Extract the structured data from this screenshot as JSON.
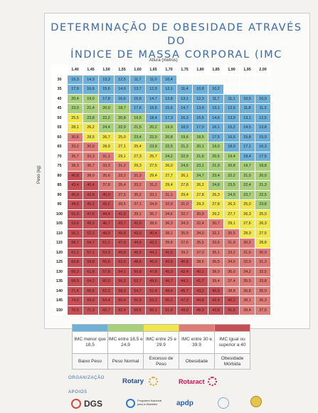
{
  "title": {
    "line1": "DETERMINAÇÃO DE OBESIDADE ATRAVÉS DO",
    "line2": "ÍNDICE DE MASSA CORPORAL (IMC"
  },
  "table": {
    "x_axis_label": "Altura (metros)",
    "y_axis_label": "Peso (kg)",
    "heights": [
      "1,40",
      "1,45",
      "1,50",
      "1,55",
      "1,60",
      "1,65",
      "1,70",
      "1,75",
      "1,80",
      "1,85",
      "1,90",
      "1,95",
      "2,00"
    ],
    "rows": [
      {
        "w": "30",
        "v": [
          "15,3",
          "14,3",
          "13,3",
          "12,5",
          "11,7",
          "11,0",
          "10,4",
          "",
          "",
          "",
          "",
          "",
          ""
        ]
      },
      {
        "w": "35",
        "v": [
          "17,9",
          "16,6",
          "15,6",
          "14,6",
          "13,7",
          "12,9",
          "12,1",
          "11,4",
          "10,8",
          "10,2",
          "",
          "",
          ""
        ]
      },
      {
        "w": "40",
        "v": [
          "20,4",
          "19,0",
          "17,8",
          "16,6",
          "15,6",
          "14,7",
          "13,8",
          "13,1",
          "12,3",
          "11,7",
          "11,1",
          "10,5",
          "10,0"
        ]
      },
      {
        "w": "45",
        "v": [
          "23,0",
          "21,4",
          "20,0",
          "18,7",
          "17,6",
          "16,5",
          "15,6",
          "14,7",
          "13,9",
          "13,1",
          "12,5",
          "11,8",
          "11,3"
        ]
      },
      {
        "w": "50",
        "v": [
          "25,5",
          "23,8",
          "22,2",
          "20,8",
          "19,5",
          "18,4",
          "17,3",
          "16,3",
          "15,5",
          "14,6",
          "13,9",
          "13,1",
          "12,5"
        ]
      },
      {
        "w": "55",
        "v": [
          "28,1",
          "26,2",
          "24,4",
          "22,9",
          "21,5",
          "20,2",
          "19,0",
          "18,0",
          "17,0",
          "16,1",
          "15,2",
          "14,5",
          "13,8"
        ]
      },
      {
        "w": "60",
        "v": [
          "30,6",
          "28,5",
          "26,7",
          "25,0",
          "23,4",
          "22,0",
          "20,8",
          "19,6",
          "18,5",
          "17,5",
          "16,6",
          "15,8",
          "15,0"
        ]
      },
      {
        "w": "65",
        "v": [
          "33,2",
          "30,9",
          "28,9",
          "27,1",
          "25,4",
          "23,9",
          "22,5",
          "21,2",
          "20,1",
          "19,0",
          "18,0",
          "17,1",
          "16,3"
        ]
      },
      {
        "w": "70",
        "v": [
          "35,7",
          "33,3",
          "31,1",
          "29,1",
          "27,3",
          "25,7",
          "24,2",
          "22,9",
          "21,6",
          "20,5",
          "19,4",
          "18,4",
          "17,5"
        ]
      },
      {
        "w": "75",
        "v": [
          "38,3",
          "35,7",
          "33,3",
          "31,2",
          "29,3",
          "27,5",
          "26,0",
          "24,5",
          "23,1",
          "21,9",
          "20,8",
          "19,7",
          "18,8"
        ]
      },
      {
        "w": "80",
        "v": [
          "40,8",
          "38,0",
          "35,6",
          "33,3",
          "31,3",
          "29,4",
          "27,7",
          "26,1",
          "24,7",
          "23,4",
          "22,2",
          "21,0",
          "20,0"
        ]
      },
      {
        "w": "85",
        "v": [
          "43,4",
          "40,4",
          "37,8",
          "35,4",
          "33,2",
          "31,2",
          "29,4",
          "27,8",
          "26,2",
          "24,8",
          "23,5",
          "22,4",
          "21,3"
        ]
      },
      {
        "w": "90",
        "v": [
          "45,9",
          "42,8",
          "40,0",
          "37,5",
          "35,2",
          "33,1",
          "31,1",
          "29,4",
          "27,8",
          "26,3",
          "24,9",
          "23,7",
          "22,5"
        ]
      },
      {
        "w": "95",
        "v": [
          "48,5",
          "45,2",
          "42,2",
          "39,5",
          "37,1",
          "34,9",
          "32,9",
          "31,0",
          "29,3",
          "27,8",
          "26,3",
          "25,0",
          "23,8"
        ]
      },
      {
        "w": "100",
        "v": [
          "51,0",
          "47,6",
          "44,4",
          "41,6",
          "39,1",
          "36,7",
          "34,6",
          "32,7",
          "30,9",
          "29,2",
          "27,7",
          "26,3",
          "25,0"
        ]
      },
      {
        "w": "105",
        "v": [
          "53,6",
          "49,9",
          "46,7",
          "43,7",
          "41,0",
          "38,6",
          "36,3",
          "34,3",
          "32,4",
          "30,7",
          "29,1",
          "27,6",
          "26,3"
        ]
      },
      {
        "w": "110",
        "v": [
          "56,1",
          "52,3",
          "48,9",
          "45,8",
          "43,0",
          "40,4",
          "38,1",
          "35,9",
          "34,0",
          "32,1",
          "30,5",
          "28,9",
          "27,5"
        ]
      },
      {
        "w": "115",
        "v": [
          "58,7",
          "54,7",
          "51,1",
          "47,9",
          "44,9",
          "42,2",
          "39,8",
          "37,6",
          "35,5",
          "33,6",
          "31,9",
          "30,2",
          "28,8"
        ]
      },
      {
        "w": "120",
        "v": [
          "61,2",
          "57,1",
          "53,3",
          "49,8",
          "46,9",
          "44,1",
          "41,5",
          "39,2",
          "37,0",
          "35,1",
          "33,2",
          "31,6",
          "30,0"
        ]
      },
      {
        "w": "125",
        "v": [
          "63,8",
          "59,8",
          "55,6",
          "52,0",
          "48,8",
          "45,9",
          "43,8",
          "40,8",
          "38,6",
          "36,5",
          "34,6",
          "32,9",
          "31,3"
        ]
      },
      {
        "w": "130",
        "v": [
          "66,3",
          "61,8",
          "57,8",
          "54,1",
          "50,8",
          "47,8",
          "45,0",
          "42,4",
          "40,1",
          "38,0",
          "36,0",
          "34,2",
          "32,5"
        ]
      },
      {
        "w": "135",
        "v": [
          "68,9",
          "64,2",
          "60,0",
          "56,2",
          "52,7",
          "49,6",
          "46,7",
          "44,1",
          "41,7",
          "39,4",
          "37,4",
          "35,5",
          "33,8"
        ]
      },
      {
        "w": "140",
        "v": [
          "71,4",
          "66,6",
          "62,2",
          "58,3",
          "54,7",
          "51,4",
          "48,4",
          "45,7",
          "43,2",
          "40,9",
          "38,8",
          "36,8",
          "35,0"
        ]
      },
      {
        "w": "145",
        "v": [
          "74,0",
          "69,0",
          "64,4",
          "60,4",
          "56,6",
          "53,3",
          "50,2",
          "47,3",
          "44,8",
          "42,4",
          "40,2",
          "38,1",
          "36,3"
        ]
      },
      {
        "w": "150",
        "v": [
          "76,5",
          "71,3",
          "66,7",
          "62,4",
          "58,6",
          "55,1",
          "51,9",
          "49,0",
          "46,3",
          "43,8",
          "41,6",
          "39,4",
          "37,5"
        ]
      }
    ]
  },
  "legend": {
    "ranges": [
      "IMC menor que 18,5",
      "IMC entre 18,5 e 24,9",
      "IMC entre 25 e 29.9",
      "IMC entre 30 e 39.9",
      "IMC igual ou superior a 40"
    ],
    "labels": [
      "Baixo Peso",
      "Peso Normal",
      "Excesso de Peso",
      "Obesidade",
      "Obesidade Mórbida"
    ],
    "colors": [
      "#6fb0d9",
      "#a8cf7a",
      "#f2e64f",
      "#e07a77",
      "#c84e55"
    ]
  },
  "footer": {
    "org_label": "ORGANIZAÇÃO",
    "apoios_label": "APOIOS",
    "rotary": "Rotary",
    "rotaract": "Rotaract",
    "dgs": "DGS",
    "programa": "Programa Nacional para a Diabetes",
    "apdp": "apdp"
  }
}
